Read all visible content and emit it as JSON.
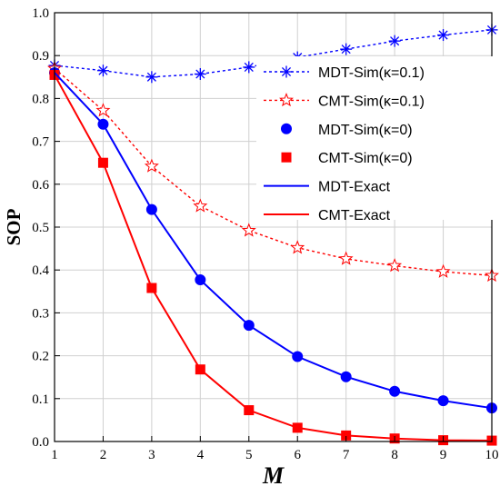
{
  "chart_data": {
    "type": "line",
    "xlabel": "M",
    "ylabel": "SOP",
    "xlim": [
      1,
      10
    ],
    "ylim": [
      0,
      1.0
    ],
    "x_ticks": [
      1,
      2,
      3,
      4,
      5,
      6,
      7,
      8,
      9,
      10
    ],
    "y_ticks": [
      "0.0",
      "0.1",
      "0.2",
      "0.3",
      "0.4",
      "0.5",
      "0.6",
      "0.7",
      "0.8",
      "0.9",
      "1.0"
    ],
    "grid": true,
    "legend_position": "top-right",
    "x": [
      1,
      2,
      3,
      4,
      5,
      6,
      7,
      8,
      9,
      10
    ],
    "series": [
      {
        "name": "MDT-Sim(κ=0.1)",
        "values": [
          0.877,
          0.865,
          0.85,
          0.857,
          0.873,
          0.896,
          0.915,
          0.934,
          0.948,
          0.96
        ],
        "color": "#0000ff",
        "marker": "asterisk",
        "line": "dotted"
      },
      {
        "name": "CMT-Sim(κ=0.1)",
        "values": [
          0.87,
          0.772,
          0.642,
          0.549,
          0.492,
          0.452,
          0.426,
          0.41,
          0.396,
          0.387
        ],
        "color": "#ff0000",
        "marker": "star",
        "line": "dotted"
      },
      {
        "name": "MDT-Sim(κ=0)",
        "values": [
          0.86,
          0.74,
          0.541,
          0.377,
          0.271,
          0.198,
          0.151,
          0.117,
          0.095,
          0.078
        ],
        "color": "#0000ff",
        "marker": "circle",
        "line": "none"
      },
      {
        "name": "CMT-Sim(κ=0)",
        "values": [
          0.855,
          0.65,
          0.358,
          0.168,
          0.073,
          0.032,
          0.014,
          0.007,
          0.003,
          0.002
        ],
        "color": "#ff0000",
        "marker": "square",
        "line": "none"
      },
      {
        "name": "MDT-Exact",
        "values": [
          0.86,
          0.74,
          0.541,
          0.377,
          0.271,
          0.198,
          0.151,
          0.117,
          0.095,
          0.078
        ],
        "color": "#0000ff",
        "marker": "none",
        "line": "solid"
      },
      {
        "name": "CMT-Exact",
        "values": [
          0.855,
          0.65,
          0.358,
          0.168,
          0.073,
          0.032,
          0.014,
          0.007,
          0.003,
          0.002
        ],
        "color": "#ff0000",
        "marker": "none",
        "line": "solid"
      }
    ]
  }
}
